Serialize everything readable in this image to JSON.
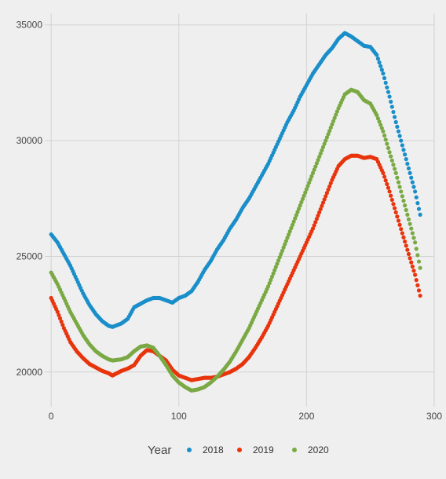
{
  "chart_data": {
    "type": "scatter",
    "x_ticks": [
      0,
      100,
      200,
      300
    ],
    "y_ticks": [
      20000,
      25000,
      30000,
      35000
    ],
    "x_tick_labels": [
      "0",
      "100",
      "200",
      "300"
    ],
    "y_tick_labels": [
      "20000",
      "25000",
      "30000",
      "35000"
    ],
    "xlim": [
      -5,
      300
    ],
    "ylim": [
      18500,
      35500
    ],
    "grid": true,
    "legend": {
      "title": "Year",
      "placement": "bottom"
    },
    "series": [
      {
        "name": "2018",
        "color": "#1a8ec9",
        "points": [
          [
            0,
            25950
          ],
          [
            5,
            25600
          ],
          [
            10,
            25100
          ],
          [
            15,
            24600
          ],
          [
            20,
            24000
          ],
          [
            25,
            23400
          ],
          [
            30,
            22900
          ],
          [
            35,
            22500
          ],
          [
            40,
            22200
          ],
          [
            45,
            22000
          ],
          [
            48,
            21950
          ],
          [
            55,
            22100
          ],
          [
            60,
            22300
          ],
          [
            65,
            22800
          ],
          [
            70,
            22950
          ],
          [
            75,
            23100
          ],
          [
            80,
            23200
          ],
          [
            85,
            23200
          ],
          [
            90,
            23100
          ],
          [
            95,
            23000
          ],
          [
            100,
            23200
          ],
          [
            105,
            23300
          ],
          [
            110,
            23500
          ],
          [
            115,
            23900
          ],
          [
            120,
            24400
          ],
          [
            125,
            24800
          ],
          [
            130,
            25300
          ],
          [
            135,
            25700
          ],
          [
            140,
            26200
          ],
          [
            145,
            26600
          ],
          [
            150,
            27100
          ],
          [
            155,
            27500
          ],
          [
            160,
            28000
          ],
          [
            165,
            28500
          ],
          [
            170,
            29000
          ],
          [
            175,
            29600
          ],
          [
            180,
            30200
          ],
          [
            185,
            30800
          ],
          [
            190,
            31300
          ],
          [
            195,
            31900
          ],
          [
            200,
            32400
          ],
          [
            205,
            32900
          ],
          [
            210,
            33300
          ],
          [
            215,
            33700
          ],
          [
            220,
            34000
          ],
          [
            225,
            34400
          ],
          [
            230,
            34650
          ],
          [
            235,
            34500
          ],
          [
            240,
            34300
          ],
          [
            245,
            34100
          ],
          [
            250,
            34050
          ],
          [
            255,
            33700
          ],
          [
            260,
            32900
          ],
          [
            265,
            31900
          ],
          [
            270,
            30800
          ],
          [
            275,
            29800
          ],
          [
            280,
            28800
          ],
          [
            285,
            27800
          ],
          [
            289,
            26800
          ]
        ]
      },
      {
        "name": "2019",
        "color": "#e8340c",
        "points": [
          [
            0,
            23200
          ],
          [
            5,
            22600
          ],
          [
            10,
            21900
          ],
          [
            15,
            21300
          ],
          [
            20,
            20900
          ],
          [
            25,
            20600
          ],
          [
            30,
            20350
          ],
          [
            35,
            20200
          ],
          [
            40,
            20050
          ],
          [
            45,
            19950
          ],
          [
            48,
            19850
          ],
          [
            55,
            20050
          ],
          [
            60,
            20150
          ],
          [
            65,
            20300
          ],
          [
            70,
            20700
          ],
          [
            75,
            20950
          ],
          [
            80,
            20900
          ],
          [
            85,
            20700
          ],
          [
            90,
            20500
          ],
          [
            95,
            20100
          ],
          [
            100,
            19850
          ],
          [
            105,
            19750
          ],
          [
            110,
            19650
          ],
          [
            115,
            19700
          ],
          [
            120,
            19750
          ],
          [
            125,
            19750
          ],
          [
            130,
            19800
          ],
          [
            135,
            19900
          ],
          [
            140,
            20000
          ],
          [
            145,
            20150
          ],
          [
            150,
            20350
          ],
          [
            155,
            20650
          ],
          [
            160,
            21050
          ],
          [
            165,
            21500
          ],
          [
            170,
            22000
          ],
          [
            175,
            22600
          ],
          [
            180,
            23200
          ],
          [
            185,
            23800
          ],
          [
            190,
            24400
          ],
          [
            195,
            25000
          ],
          [
            200,
            25600
          ],
          [
            205,
            26200
          ],
          [
            210,
            26900
          ],
          [
            215,
            27600
          ],
          [
            220,
            28300
          ],
          [
            225,
            28900
          ],
          [
            230,
            29200
          ],
          [
            235,
            29350
          ],
          [
            240,
            29350
          ],
          [
            245,
            29250
          ],
          [
            250,
            29300
          ],
          [
            255,
            29200
          ],
          [
            260,
            28600
          ],
          [
            265,
            27800
          ],
          [
            270,
            26900
          ],
          [
            275,
            26000
          ],
          [
            280,
            25100
          ],
          [
            285,
            24200
          ],
          [
            289,
            23300
          ]
        ]
      },
      {
        "name": "2020",
        "color": "#7aa944",
        "points": [
          [
            0,
            24300
          ],
          [
            5,
            23800
          ],
          [
            10,
            23200
          ],
          [
            15,
            22600
          ],
          [
            20,
            22100
          ],
          [
            25,
            21600
          ],
          [
            30,
            21200
          ],
          [
            35,
            20900
          ],
          [
            40,
            20700
          ],
          [
            45,
            20550
          ],
          [
            48,
            20500
          ],
          [
            55,
            20550
          ],
          [
            60,
            20650
          ],
          [
            65,
            20900
          ],
          [
            70,
            21100
          ],
          [
            75,
            21150
          ],
          [
            80,
            21050
          ],
          [
            85,
            20700
          ],
          [
            90,
            20300
          ],
          [
            95,
            19850
          ],
          [
            100,
            19550
          ],
          [
            105,
            19350
          ],
          [
            110,
            19200
          ],
          [
            115,
            19250
          ],
          [
            120,
            19350
          ],
          [
            125,
            19550
          ],
          [
            130,
            19800
          ],
          [
            135,
            20100
          ],
          [
            140,
            20450
          ],
          [
            145,
            20900
          ],
          [
            150,
            21400
          ],
          [
            155,
            21900
          ],
          [
            160,
            22500
          ],
          [
            165,
            23100
          ],
          [
            170,
            23700
          ],
          [
            175,
            24400
          ],
          [
            180,
            25100
          ],
          [
            185,
            25800
          ],
          [
            190,
            26500
          ],
          [
            195,
            27200
          ],
          [
            200,
            27900
          ],
          [
            205,
            28600
          ],
          [
            210,
            29300
          ],
          [
            215,
            30000
          ],
          [
            220,
            30700
          ],
          [
            225,
            31400
          ],
          [
            230,
            32000
          ],
          [
            235,
            32200
          ],
          [
            240,
            32100
          ],
          [
            245,
            31750
          ],
          [
            250,
            31600
          ],
          [
            255,
            31100
          ],
          [
            260,
            30400
          ],
          [
            265,
            29500
          ],
          [
            270,
            28600
          ],
          [
            275,
            27600
          ],
          [
            280,
            26600
          ],
          [
            285,
            25600
          ],
          [
            289,
            24500
          ]
        ]
      }
    ]
  }
}
